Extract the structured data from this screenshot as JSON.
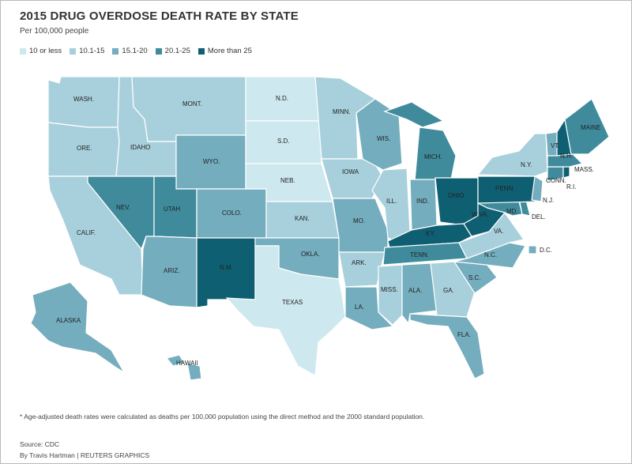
{
  "title": "2015 DRUG OVERDOSE DEATH RATE BY STATE",
  "subtitle": "Per 100,000 people",
  "legend": [
    {
      "label": "10 or less",
      "color": "#cde8ee"
    },
    {
      "label": "10.1-15",
      "color": "#a8d0dc"
    },
    {
      "label": "15.1-20",
      "color": "#74adbe"
    },
    {
      "label": "20.1-25",
      "color": "#3f8b9c"
    },
    {
      "label": "More than 25",
      "color": "#0f5f72"
    }
  ],
  "states": {
    "wa": {
      "label": "WASH.",
      "bin": "10.1-15"
    },
    "or": {
      "label": "ORE.",
      "bin": "10.1-15"
    },
    "ca": {
      "label": "CALIF.",
      "bin": "10.1-15"
    },
    "id": {
      "label": "IDAHO",
      "bin": "10.1-15"
    },
    "nv": {
      "label": "NEV.",
      "bin": "20.1-25"
    },
    "mt": {
      "label": "MONT.",
      "bin": "10.1-15"
    },
    "wy": {
      "label": "WYO.",
      "bin": "15.1-20"
    },
    "ut": {
      "label": "UTAH",
      "bin": "20.1-25"
    },
    "az": {
      "label": "ARIZ.",
      "bin": "15.1-20"
    },
    "co": {
      "label": "COLO.",
      "bin": "15.1-20"
    },
    "nm": {
      "label": "N.M.",
      "bin": "More than 25"
    },
    "nd": {
      "label": "N.D.",
      "bin": "10 or less"
    },
    "sd": {
      "label": "S.D.",
      "bin": "10 or less"
    },
    "ne": {
      "label": "NEB.",
      "bin": "10 or less"
    },
    "ks": {
      "label": "KAN.",
      "bin": "10.1-15"
    },
    "ok": {
      "label": "OKLA.",
      "bin": "15.1-20"
    },
    "tx": {
      "label": "TEXAS",
      "bin": "10 or less"
    },
    "mn": {
      "label": "MINN.",
      "bin": "10.1-15"
    },
    "ia": {
      "label": "IOWA",
      "bin": "10.1-15"
    },
    "mo": {
      "label": "MO.",
      "bin": "15.1-20"
    },
    "ar": {
      "label": "ARK.",
      "bin": "10.1-15"
    },
    "la": {
      "label": "LA.",
      "bin": "15.1-20"
    },
    "wi": {
      "label": "WIS.",
      "bin": "15.1-20"
    },
    "il": {
      "label": "ILL.",
      "bin": "10.1-15"
    },
    "mi": {
      "label": "MICH.",
      "bin": "20.1-25"
    },
    "in": {
      "label": "IND.",
      "bin": "15.1-20"
    },
    "oh": {
      "label": "OHIO",
      "bin": "More than 25"
    },
    "ky": {
      "label": "KY.",
      "bin": "More than 25"
    },
    "tn": {
      "label": "TENN.",
      "bin": "20.1-25"
    },
    "ms": {
      "label": "MISS.",
      "bin": "10.1-15"
    },
    "al": {
      "label": "ALA.",
      "bin": "15.1-20"
    },
    "ga": {
      "label": "GA.",
      "bin": "10.1-15"
    },
    "fl": {
      "label": "FLA.",
      "bin": "15.1-20"
    },
    "sc": {
      "label": "S.C.",
      "bin": "15.1-20"
    },
    "nc": {
      "label": "N.C.",
      "bin": "15.1-20"
    },
    "va": {
      "label": "VA.",
      "bin": "10.1-15"
    },
    "wv": {
      "label": "W.VA.",
      "bin": "More than 25"
    },
    "md": {
      "label": "MD.",
      "bin": "20.1-25"
    },
    "de": {
      "label": "DEL.",
      "bin": "20.1-25"
    },
    "dc": {
      "label": "D.C.",
      "bin": "15.1-20"
    },
    "pa": {
      "label": "PENN.",
      "bin": "More than 25"
    },
    "ny": {
      "label": "N.Y.",
      "bin": "10.1-15"
    },
    "nj": {
      "label": "N.J.",
      "bin": "15.1-20"
    },
    "ct": {
      "label": "CONN.",
      "bin": "20.1-25"
    },
    "ri": {
      "label": "R.I.",
      "bin": "More than 25"
    },
    "ma": {
      "label": "MASS.",
      "bin": "20.1-25"
    },
    "vt": {
      "label": "VT.",
      "bin": "15.1-20"
    },
    "nh": {
      "label": "N.H.",
      "bin": "More than 25"
    },
    "me": {
      "label": "MAINE",
      "bin": "20.1-25"
    },
    "ak": {
      "label": "ALASKA",
      "bin": "15.1-20"
    },
    "hi": {
      "label": "HAWAII",
      "bin": "15.1-20"
    }
  },
  "footnote": "* Age-adjusted death rates were calculated as deaths per 100,000 population using the direct method and the 2000 standard population.",
  "source": "Source: CDC",
  "credit": "By Travis Hartman | REUTERS GRAPHICS"
}
